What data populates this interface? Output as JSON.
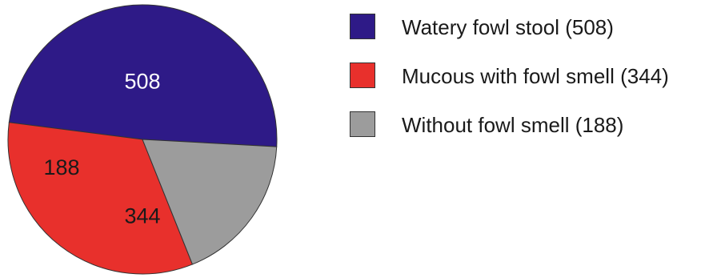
{
  "chart_data": {
    "type": "pie",
    "title": "",
    "slices": [
      {
        "label": "Watery fowl stool (508)",
        "value": 508,
        "display": "508",
        "color": "#2e1a87",
        "label_color": "#ffffff"
      },
      {
        "label": "Mucous with fowl smell (344)",
        "value": 344,
        "display": "344",
        "color": "#e8302c",
        "label_color": "#1a1a1a"
      },
      {
        "label": "Without fowl smell (188)",
        "value": 188,
        "display": "188",
        "color": "#9c9c9c",
        "label_color": "#1a1a1a"
      }
    ],
    "legend_position": "right"
  }
}
